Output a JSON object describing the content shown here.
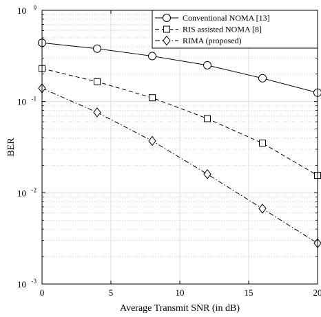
{
  "chart_data": {
    "type": "line",
    "xlabel": "Average Transmit SNR (in dB)",
    "ylabel": "BER",
    "xlim": [
      0,
      20
    ],
    "ylim": [
      0.001,
      1
    ],
    "yscale": "log",
    "grid": true,
    "legend_position": "top-right",
    "x_ticks": [
      "0",
      "5",
      "10",
      "15",
      "20"
    ],
    "y_ticks": [
      {
        "value": 1,
        "base": "10",
        "exp": "0"
      },
      {
        "value": 0.1,
        "base": "10",
        "exp": "-1"
      },
      {
        "value": 0.01,
        "base": "10",
        "exp": "-2"
      },
      {
        "value": 0.001,
        "base": "10",
        "exp": "-3"
      }
    ],
    "x": [
      0,
      4,
      8,
      12,
      16,
      20
    ],
    "series": [
      {
        "name": "Conventional NOMA [13]",
        "marker": "circle",
        "dash": "solid",
        "values": [
          0.44,
          0.38,
          0.315,
          0.25,
          0.18,
          0.125
        ]
      },
      {
        "name": "RIS assisted NOMA [8]",
        "marker": "square",
        "dash": "dashed",
        "values": [
          0.23,
          0.165,
          0.11,
          0.065,
          0.035,
          0.0155
        ]
      },
      {
        "name": "RIMA (proposed)",
        "marker": "diamond",
        "dash": "dashdot",
        "values": [
          0.14,
          0.076,
          0.037,
          0.016,
          0.0067,
          0.0028
        ]
      }
    ]
  }
}
